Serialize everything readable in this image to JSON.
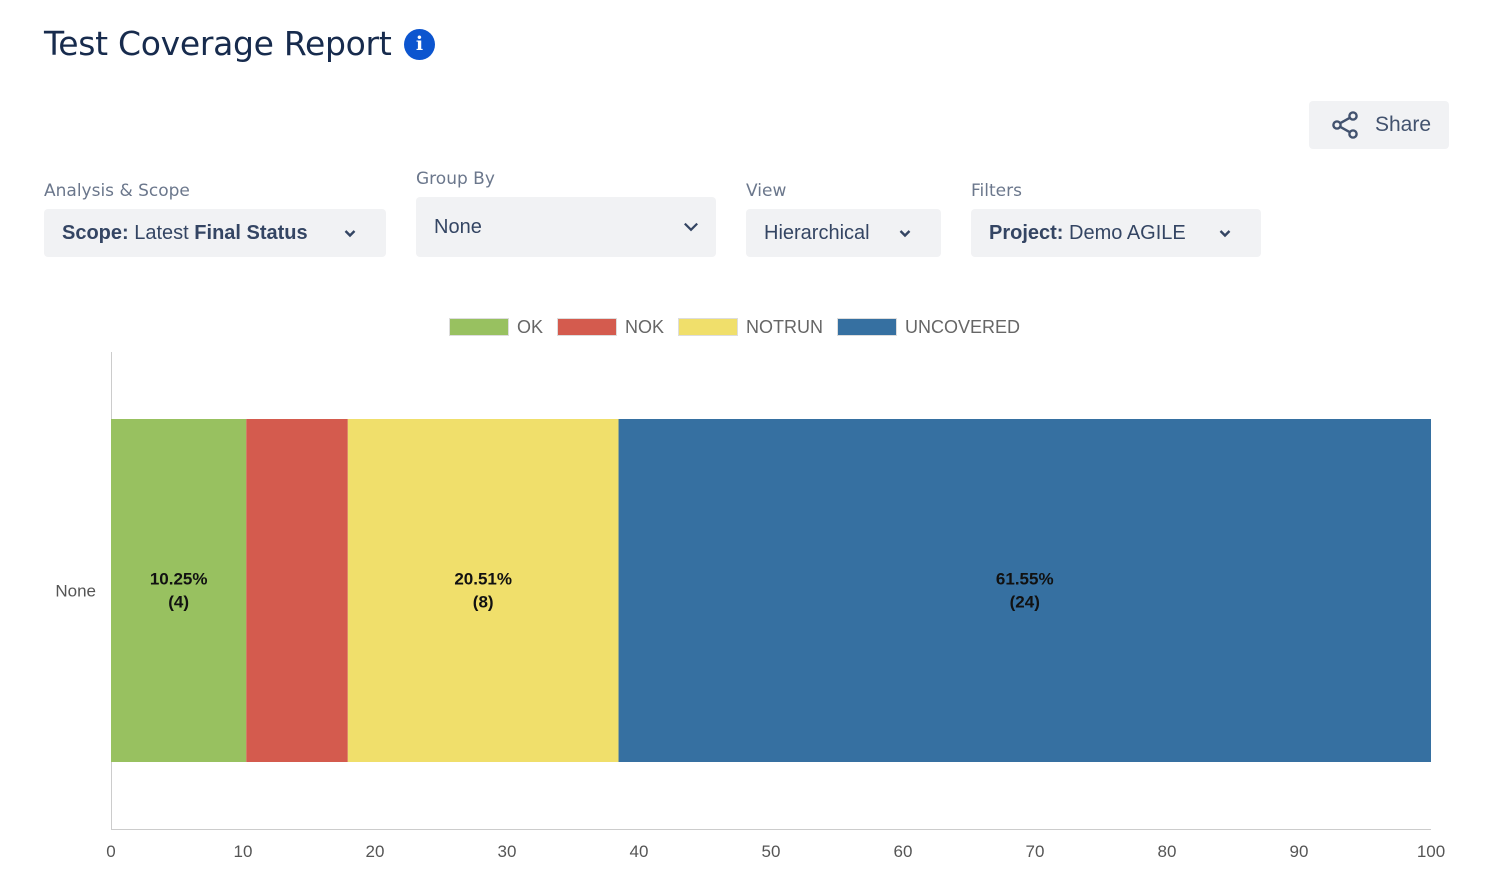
{
  "header": {
    "title": "Test Coverage Report",
    "info_glyph": "i"
  },
  "share": {
    "label": "Share",
    "icon": "share-icon"
  },
  "filters": {
    "analysis_scope": {
      "label": "Analysis & Scope",
      "prefix": "Scope:",
      "middle": "Latest",
      "bold": "Final Status"
    },
    "group_by": {
      "label": "Group By",
      "value": "None"
    },
    "view": {
      "label": "View",
      "value": "Hierarchical"
    },
    "filters": {
      "label": "Filters",
      "prefix": "Project:",
      "value": "Demo AGILE"
    }
  },
  "colors": {
    "ok": "#98c160",
    "nok": "#d45b4e",
    "notrun": "#f0df6b",
    "uncovered": "#3670a1"
  },
  "legend": [
    {
      "label": "OK",
      "color": "#98c160"
    },
    {
      "label": "NOK",
      "color": "#d45b4e"
    },
    {
      "label": "NOTRUN",
      "color": "#f0df6b"
    },
    {
      "label": "UNCOVERED",
      "color": "#3670a1"
    }
  ],
  "chart_data": {
    "type": "bar",
    "orientation": "horizontal",
    "stacked": true,
    "categories": [
      "None"
    ],
    "series": [
      {
        "name": "OK",
        "values": [
          10.25
        ],
        "count": 4,
        "percent_label": "10.25%",
        "count_label": "(4)",
        "color": "#98c160"
      },
      {
        "name": "NOK",
        "values": [
          7.69
        ],
        "color": "#d45b4e"
      },
      {
        "name": "NOTRUN",
        "values": [
          20.51
        ],
        "count": 8,
        "percent_label": "20.51%",
        "count_label": "(8)",
        "color": "#f0df6b"
      },
      {
        "name": "UNCOVERED",
        "values": [
          61.55
        ],
        "count": 24,
        "percent_label": "61.55%",
        "count_label": "(24)",
        "color": "#3670a1"
      }
    ],
    "xlim": [
      0,
      100
    ],
    "xticks": [
      0,
      10,
      20,
      30,
      40,
      50,
      60,
      70,
      80,
      90,
      100
    ],
    "legend_position": "top",
    "grid": false
  }
}
